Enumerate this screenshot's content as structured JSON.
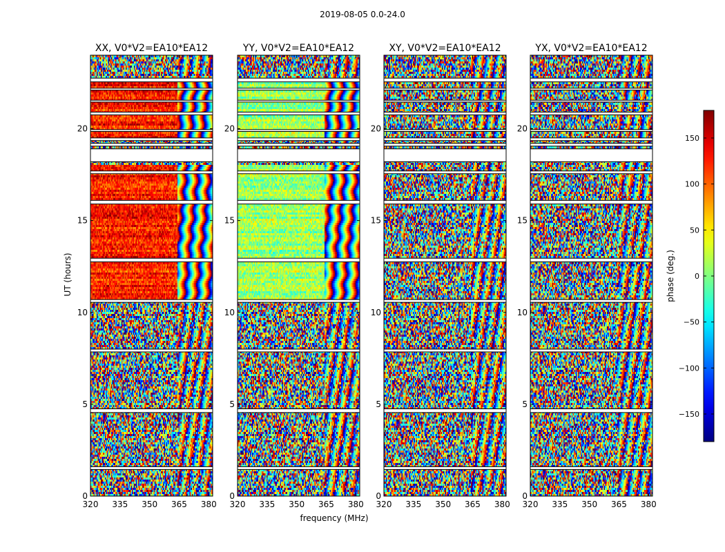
{
  "figure": {
    "suptitle": "2019-08-05 0.0-24.0",
    "xlabel": "frequency (MHz)",
    "ylabel": "UT (hours)",
    "colorbar_label": "phase (deg.)"
  },
  "chart_data": {
    "type": "heatmap",
    "panels": [
      {
        "title": "XX, V0*V2=EA10*EA12",
        "pol": "XX"
      },
      {
        "title": "YY, V0*V2=EA10*EA12",
        "pol": "YY"
      },
      {
        "title": "XY, V0*V2=EA10*EA12",
        "pol": "XY"
      },
      {
        "title": "YX, V0*V2=EA10*EA12",
        "pol": "YX"
      }
    ],
    "xlim": [
      320,
      382
    ],
    "x_ticks": [
      320,
      335,
      350,
      365,
      380
    ],
    "ylim": [
      0,
      24
    ],
    "y_ticks": [
      0,
      5,
      10,
      15,
      20
    ],
    "colorbar": {
      "range": [
        -180,
        180
      ],
      "ticks": [
        150,
        100,
        50,
        0,
        -50,
        -100,
        -150
      ],
      "tick_labels": [
        "150",
        "100",
        "50",
        "0",
        "−50",
        "−100",
        "−150"
      ],
      "colormap": "jet"
    },
    "flagged_bands_ut": [
      [
        1.45,
        1.6
      ],
      [
        4.55,
        4.75
      ],
      [
        7.85,
        8.0
      ],
      [
        10.55,
        10.7
      ],
      [
        12.75,
        12.95
      ],
      [
        15.9,
        16.1
      ],
      [
        17.55,
        17.7
      ],
      [
        18.2,
        18.9
      ],
      [
        19.05,
        19.2
      ],
      [
        19.35,
        19.5
      ],
      [
        19.85,
        19.95
      ],
      [
        20.75,
        20.9
      ],
      [
        21.45,
        21.55
      ],
      [
        22.1,
        22.2
      ],
      [
        22.55,
        22.75
      ]
    ],
    "structure": {
      "XX": {
        "coherent_ut": [
          [
            10.6,
            18.0
          ],
          [
            19.5,
            22.5
          ]
        ],
        "split_freq_mhz": 364,
        "phase_low_deg": 125
      },
      "YY": {
        "coherent_ut": [
          [
            10.6,
            18.0
          ],
          [
            19.5,
            22.5
          ]
        ],
        "split_freq_mhz": 364,
        "phase_low_deg": 10
      },
      "XY": {
        "coherent_ut": [],
        "split_freq_mhz": 364,
        "phase_low_deg": 0
      },
      "YX": {
        "coherent_ut": [],
        "split_freq_mhz": 364,
        "phase_low_deg": 0
      }
    }
  }
}
